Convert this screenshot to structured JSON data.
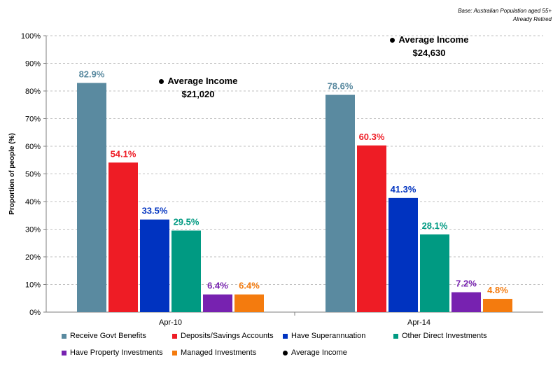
{
  "base_note": {
    "line1": "Base: Australian Population aged 55+",
    "line2": "Already Retired"
  },
  "chart_data": {
    "type": "bar",
    "title": "",
    "xlabel": "",
    "ylabel": "Proportion of people (%)",
    "ylim": [
      0,
      100
    ],
    "yticks": [
      "0%",
      "10%",
      "20%",
      "30%",
      "40%",
      "50%",
      "60%",
      "70%",
      "80%",
      "90%",
      "100%"
    ],
    "grid": "horizontal dashed",
    "legend_position": "bottom",
    "categories": [
      "Apr-10",
      "Apr-14"
    ],
    "series": [
      {
        "name": "Receive Govt Benefits",
        "values": [
          82.9,
          78.6
        ],
        "labels": [
          "82.9%",
          "78.6%"
        ],
        "color": "#5a8aa0"
      },
      {
        "name": "Deposits/Savings Accounts",
        "values": [
          54.1,
          60.3
        ],
        "labels": [
          "54.1%",
          "60.3%"
        ],
        "color": "#ee1c25"
      },
      {
        "name": "Have Superannuation",
        "values": [
          33.5,
          41.3
        ],
        "labels": [
          "33.5%",
          "41.3%"
        ],
        "color": "#0033c0"
      },
      {
        "name": "Other Direct Investments",
        "values": [
          29.5,
          28.1
        ],
        "labels": [
          "29.5%",
          "28.1%"
        ],
        "color": "#009a82"
      },
      {
        "name": "Have Property Investments",
        "values": [
          6.4,
          7.2
        ],
        "labels": [
          "6.4%",
          "7.2%"
        ],
        "color": "#7722b0"
      },
      {
        "name": "Managed Investments",
        "values": [
          6.4,
          4.8
        ],
        "labels": [
          "6.4%",
          "4.8%"
        ],
        "color": "#f47b0e"
      }
    ],
    "average_income": {
      "name": "Average Income",
      "label": "Average Income",
      "values": [
        "$21,020",
        "$24,630"
      ]
    }
  }
}
